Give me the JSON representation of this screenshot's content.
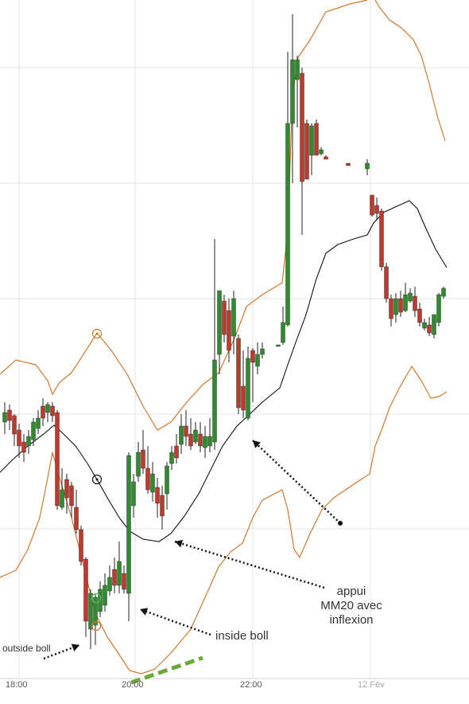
{
  "chart_data": {
    "type": "candlestick",
    "title": "",
    "xlabel": "",
    "ylabel": "",
    "x_ticks": [
      "18:00",
      "20:00",
      "22:00",
      "12 Fév"
    ],
    "grid": true,
    "legend": "none",
    "colors": {
      "up": "#2e8b2e",
      "down": "#c0392b",
      "ma": "#111111",
      "bands": "#d2782c",
      "arrow": "#111111",
      "support_line": "#6aaa3a",
      "grid": "#e3e3e3"
    },
    "series": [
      {
        "name": "MM20",
        "kind": "moving-average"
      },
      {
        "name": "",
        "kind": "bollinger-upper"
      },
      {
        "name": "",
        "kind": "bollinger-lower"
      }
    ],
    "annotations": [
      {
        "text_lines": [
          "outside boll"
        ],
        "target": "low-band-breach"
      },
      {
        "text_lines": [
          "inside boll"
        ],
        "target": "reentry-candle"
      },
      {
        "text_lines": [
          "appui",
          "MM20 avec",
          "inflexion"
        ],
        "target": "ma-inflection"
      }
    ]
  }
}
